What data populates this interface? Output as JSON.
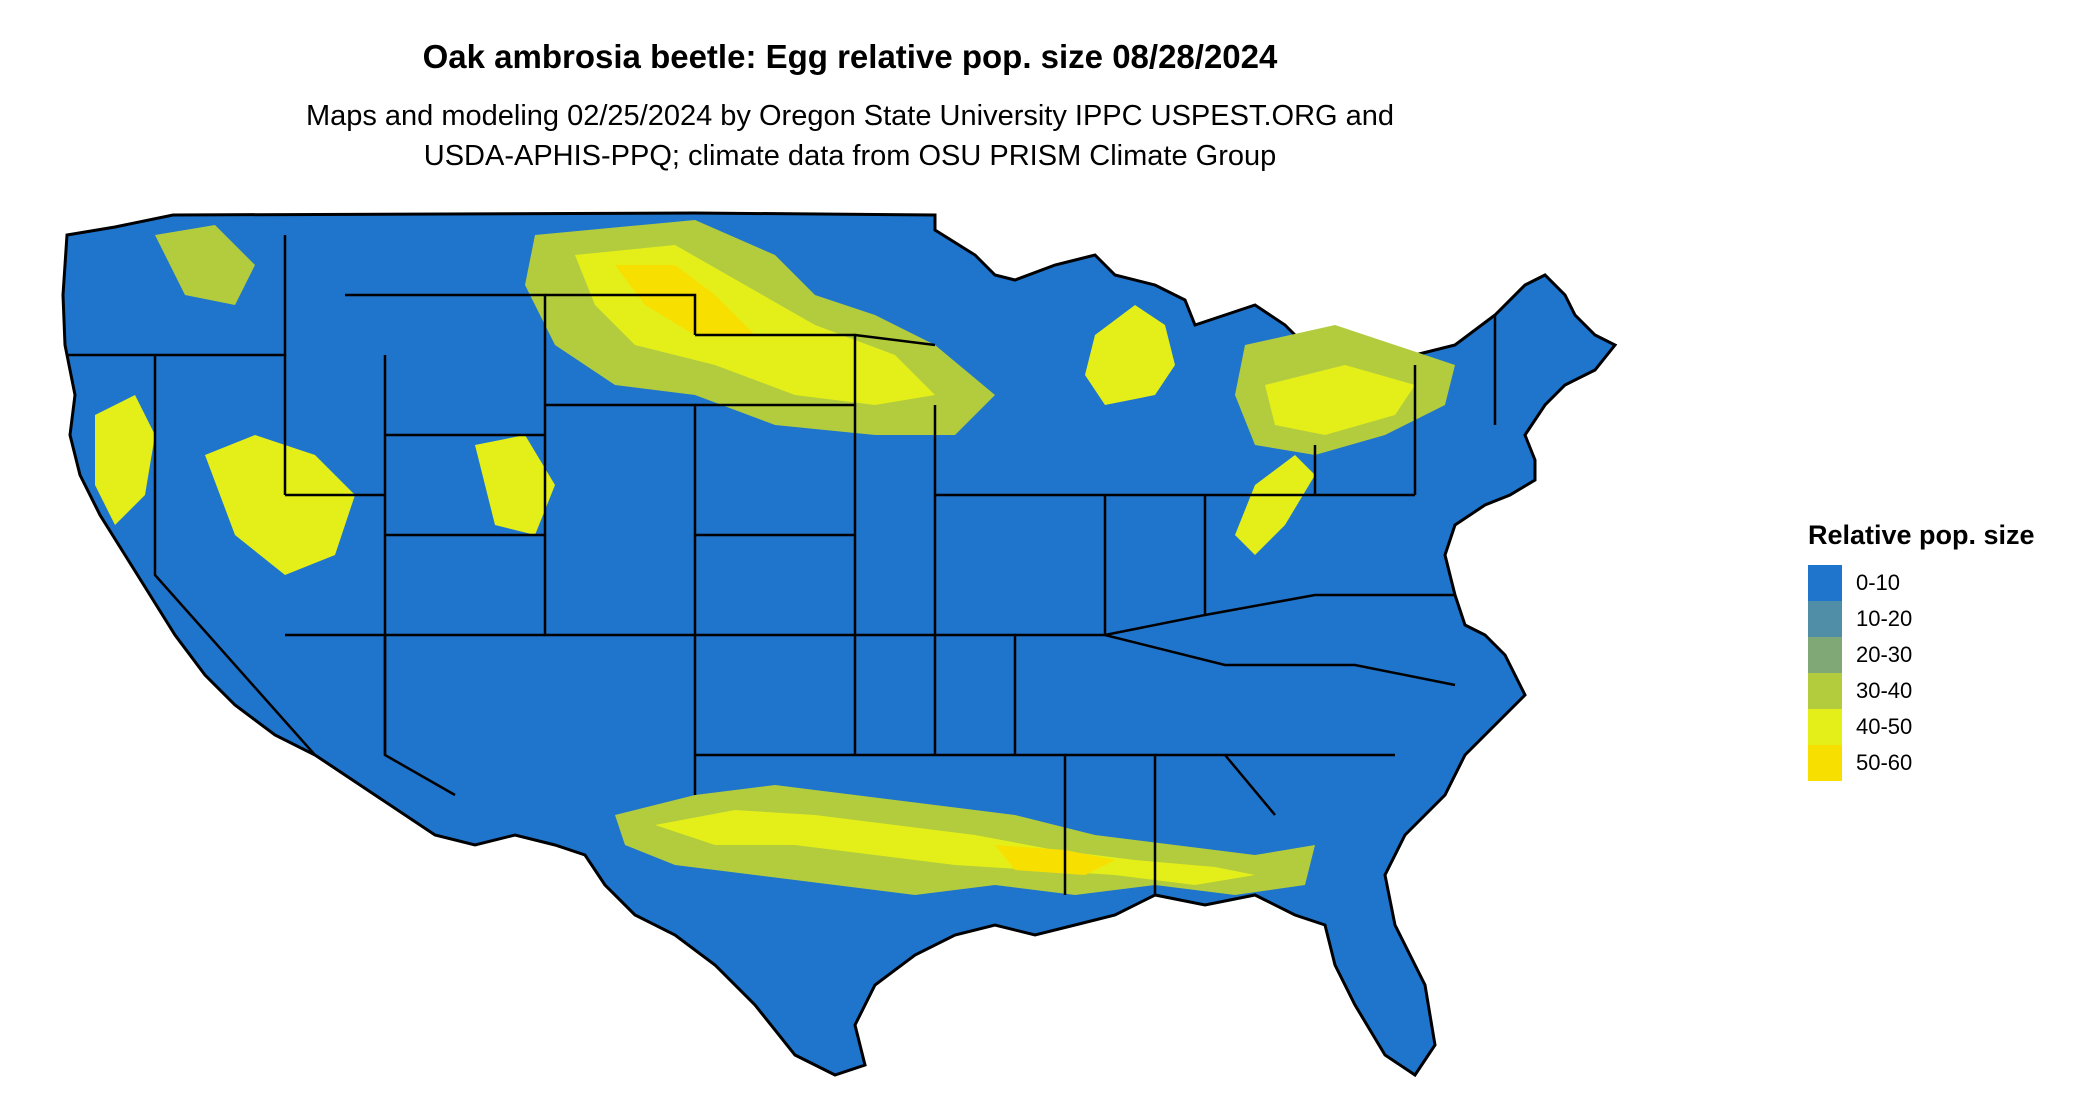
{
  "title": "Oak ambrosia beetle: Egg relative pop. size 08/28/2024",
  "subtitle_line1": "Maps and modeling 02/25/2024 by Oregon State University IPPC USPEST.ORG and",
  "subtitle_line2": "USDA-APHIS-PPQ; climate data from OSU PRISM Climate Group",
  "legend": {
    "title": "Relative pop. size",
    "items": [
      {
        "label": "0-10",
        "color": "#1f74cc"
      },
      {
        "label": "10-20",
        "color": "#4f8ea6"
      },
      {
        "label": "20-30",
        "color": "#7fa876"
      },
      {
        "label": "30-40",
        "color": "#b2cc3e"
      },
      {
        "label": "40-50",
        "color": "#e4ef1a"
      },
      {
        "label": "50-60",
        "color": "#f7df00"
      }
    ]
  }
}
